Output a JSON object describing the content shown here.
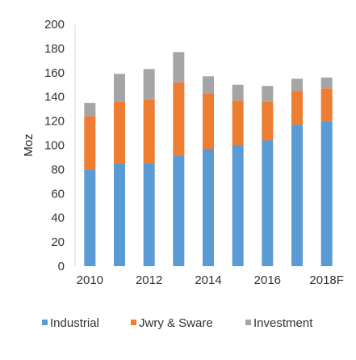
{
  "chart_data": {
    "type": "bar",
    "stacked": true,
    "title": "",
    "xlabel": "",
    "ylabel": "Moz",
    "ylim": [
      0,
      200
    ],
    "yticks": [
      0,
      20,
      40,
      60,
      80,
      100,
      120,
      140,
      160,
      180,
      200
    ],
    "categories": [
      "2010",
      "2011",
      "2012",
      "2013",
      "2014",
      "2015",
      "2016",
      "2017",
      "2018F"
    ],
    "x_tick_labels": [
      "2010",
      "",
      "2012",
      "",
      "2014",
      "",
      "2016",
      "",
      "2018F"
    ],
    "series": [
      {
        "name": "Industrial",
        "color": "#5b9bd5",
        "values": [
          80,
          85,
          85,
          91,
          97,
          100,
          104,
          117,
          120
        ]
      },
      {
        "name": "Jwry & Sware",
        "color": "#ed7d31",
        "values": [
          44,
          51,
          53,
          61,
          46,
          37,
          32,
          28,
          27
        ]
      },
      {
        "name": "Investment",
        "color": "#a5a5a5",
        "values": [
          11,
          23,
          25,
          25,
          14,
          13,
          13,
          10,
          9
        ]
      }
    ],
    "grid": false,
    "legend_position": "bottom"
  }
}
